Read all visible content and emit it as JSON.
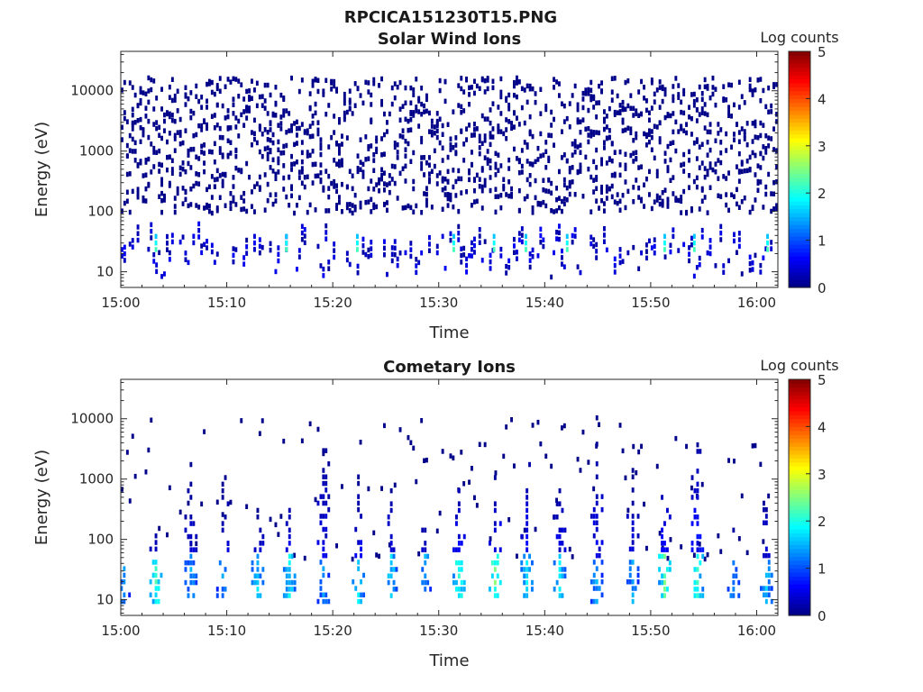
{
  "figure_title": "RPCICA151230T15.PNG",
  "colorscale": {
    "stops": [
      "#00007f",
      "#0000ff",
      "#007fff",
      "#00ffff",
      "#7fff7f",
      "#ffff00",
      "#ff7f00",
      "#ff0000",
      "#7f0000"
    ]
  },
  "chart_data": [
    {
      "type": "heatmap",
      "title": "Solar Wind Ions",
      "xlabel": "Time",
      "ylabel": "Energy (eV)",
      "x_range_minutes": [
        0,
        62
      ],
      "x_ticks": [
        "15:00",
        "15:10",
        "15:20",
        "15:30",
        "15:40",
        "15:50",
        "16:00"
      ],
      "y_scale": "log",
      "y_range": [
        5.5,
        45000
      ],
      "y_ticks": [
        "10",
        "100",
        "1000",
        "10000"
      ],
      "colorbar": {
        "label": "Log counts",
        "range": [
          0,
          5
        ],
        "ticks": [
          "0",
          "1",
          "2",
          "3",
          "4",
          "5"
        ]
      },
      "sparse_cells_per_minute": 28,
      "peak_times_minutes": [
        3.2,
        15.5,
        22.2,
        31.3,
        35.1,
        38.1,
        42.0,
        51.2,
        54.0,
        60.9
      ],
      "peak_value_log_counts": 2.2
    },
    {
      "type": "heatmap",
      "title": "Cometary Ions",
      "xlabel": "Time",
      "ylabel": "Energy (eV)",
      "x_range_minutes": [
        0,
        62
      ],
      "x_ticks": [
        "15:00",
        "15:10",
        "15:20",
        "15:30",
        "15:40",
        "15:50",
        "16:00"
      ],
      "y_scale": "log",
      "y_range": [
        5.5,
        45000
      ],
      "y_ticks": [
        "10",
        "100",
        "1000",
        "10000"
      ],
      "colorbar": {
        "label": "Log counts",
        "range": [
          0,
          5
        ],
        "ticks": [
          "0",
          "1",
          "2",
          "3",
          "4",
          "5"
        ]
      },
      "bursts": [
        {
          "t": 0.2,
          "e_low": 8,
          "e_high": 40,
          "level": 1.5
        },
        {
          "t": 3.2,
          "e_low": 8,
          "e_high": 150,
          "level": 2.3
        },
        {
          "t": 6.5,
          "e_low": 10,
          "e_high": 1500,
          "level": 1.6
        },
        {
          "t": 9.5,
          "e_low": 10,
          "e_high": 1000,
          "level": 1.5
        },
        {
          "t": 12.8,
          "e_low": 10,
          "e_high": 300,
          "level": 1.8
        },
        {
          "t": 15.8,
          "e_low": 10,
          "e_high": 500,
          "level": 2.0
        },
        {
          "t": 19.0,
          "e_low": 8,
          "e_high": 8000,
          "level": 1.5
        },
        {
          "t": 22.3,
          "e_low": 8,
          "e_high": 1200,
          "level": 1.9
        },
        {
          "t": 25.4,
          "e_low": 10,
          "e_high": 800,
          "level": 1.9
        },
        {
          "t": 28.6,
          "e_low": 10,
          "e_high": 300,
          "level": 1.6
        },
        {
          "t": 31.8,
          "e_low": 10,
          "e_high": 1200,
          "level": 2.4
        },
        {
          "t": 35.2,
          "e_low": 10,
          "e_high": 1000,
          "level": 2.6
        },
        {
          "t": 38.2,
          "e_low": 10,
          "e_high": 3000,
          "level": 2.0
        },
        {
          "t": 41.3,
          "e_low": 10,
          "e_high": 1000,
          "level": 1.9
        },
        {
          "t": 44.8,
          "e_low": 8,
          "e_high": 10000,
          "level": 1.6
        },
        {
          "t": 48.2,
          "e_low": 8,
          "e_high": 1500,
          "level": 1.6
        },
        {
          "t": 51.2,
          "e_low": 10,
          "e_high": 1000,
          "level": 2.6
        },
        {
          "t": 54.3,
          "e_low": 10,
          "e_high": 6000,
          "level": 2.2
        },
        {
          "t": 57.7,
          "e_low": 10,
          "e_high": 200,
          "level": 1.5
        },
        {
          "t": 60.8,
          "e_low": 8,
          "e_high": 600,
          "level": 1.8
        }
      ],
      "sparse_cells_per_minute": 2
    }
  ]
}
